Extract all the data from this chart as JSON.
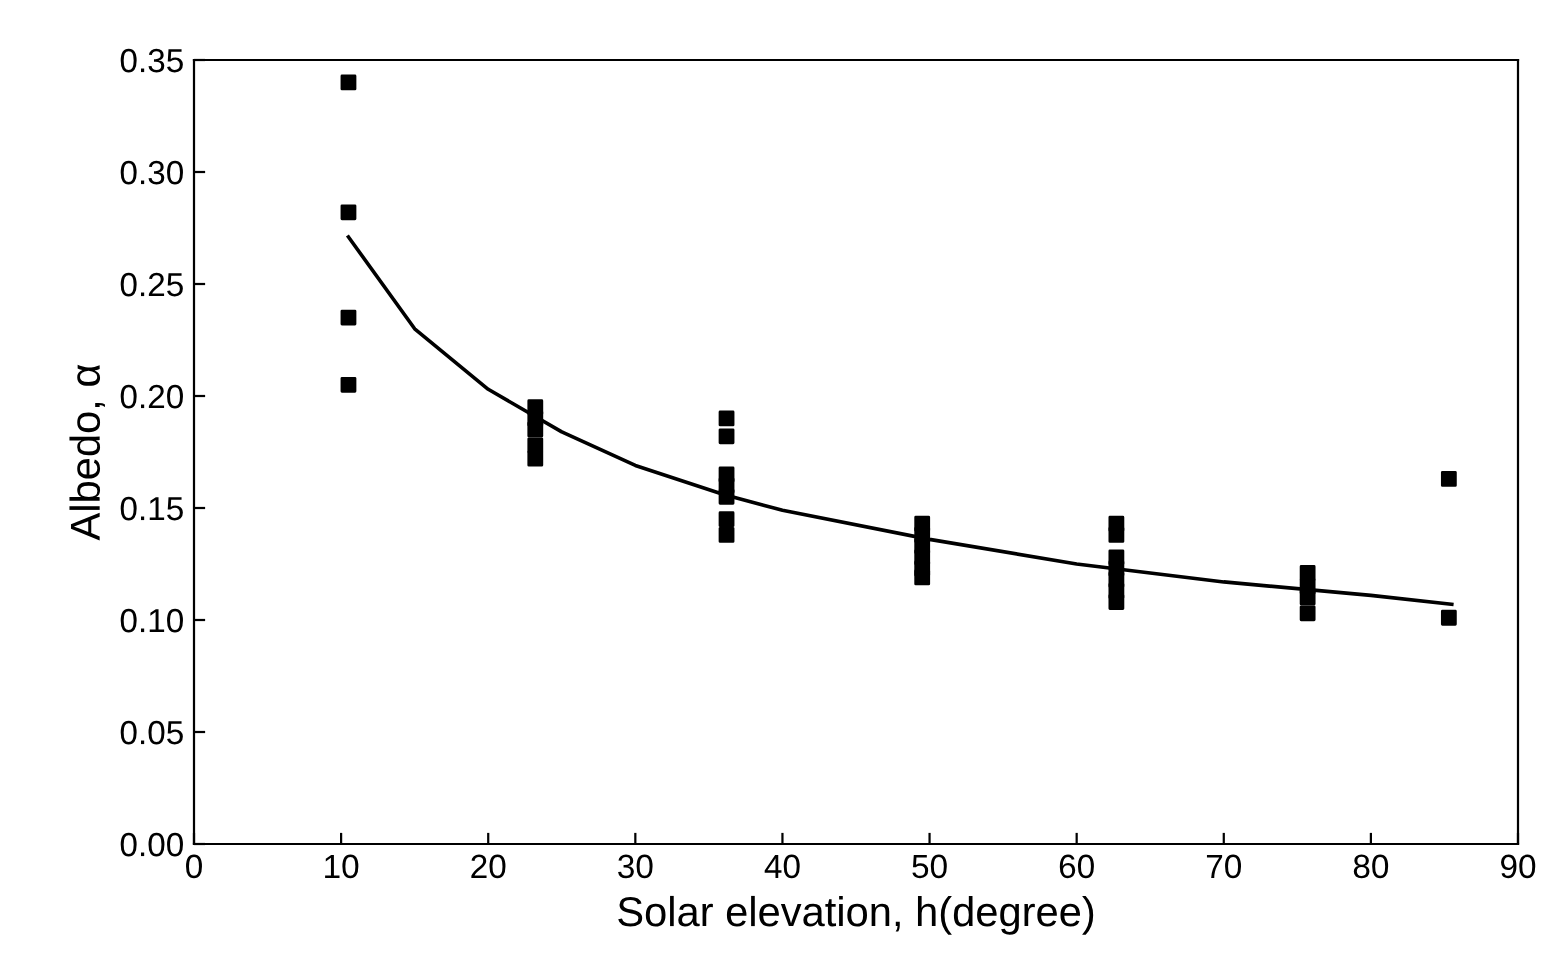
{
  "chart_data": {
    "type": "scatter",
    "xlabel": "Solar elevation, h(degree)",
    "ylabel": "Albedo, α",
    "xlim": [
      0,
      90
    ],
    "xticks": [
      0,
      10,
      20,
      30,
      40,
      50,
      60,
      70,
      80,
      90
    ],
    "ylim": [
      0,
      0.35
    ],
    "yticks": [
      {
        "value": 0,
        "label": "0.00"
      },
      {
        "value": 0.05,
        "label": "0.05"
      },
      {
        "value": 0.1,
        "label": "0.10"
      },
      {
        "value": 0.15,
        "label": "0.15"
      },
      {
        "value": 0.2,
        "label": "0.20"
      },
      {
        "value": 0.25,
        "label": "0.25"
      },
      {
        "value": 0.3,
        "label": "0.30"
      },
      {
        "value": 0.35,
        "label": "0.35"
      }
    ],
    "grid": false,
    "legend": false,
    "series": [
      {
        "marker": "square",
        "color": "#000000",
        "x": [
          10.5,
          10.5,
          10.5,
          10.5,
          23.2,
          23.2,
          23.2,
          23.2,
          23.2,
          36.2,
          36.2,
          36.2,
          36.2,
          36.2,
          36.2,
          36.2,
          49.5,
          49.5,
          49.5,
          49.5,
          49.5,
          49.5,
          62.7,
          62.7,
          62.7,
          62.7,
          62.7,
          62.7,
          62.7,
          75.7,
          75.7,
          75.7,
          75.7,
          85.3,
          85.3
        ],
        "values": [
          0.34,
          0.282,
          0.235,
          0.205,
          0.195,
          0.19,
          0.185,
          0.178,
          0.172,
          0.19,
          0.182,
          0.165,
          0.16,
          0.155,
          0.145,
          0.138,
          0.143,
          0.138,
          0.133,
          0.128,
          0.123,
          0.119,
          0.143,
          0.138,
          0.128,
          0.123,
          0.118,
          0.113,
          0.108,
          0.121,
          0.115,
          0.11,
          0.103,
          0.163,
          0.101
        ]
      },
      {
        "type": "line",
        "color": "#000000",
        "marker": "none",
        "line_style": "solid",
        "x": [
          10.5,
          15,
          20,
          25,
          30,
          36,
          40,
          50,
          60,
          70,
          80,
          85.5
        ],
        "values": [
          0.271,
          0.23,
          0.203,
          0.184,
          0.169,
          0.156,
          0.149,
          0.136,
          0.125,
          0.117,
          0.111,
          0.107
        ]
      }
    ]
  }
}
